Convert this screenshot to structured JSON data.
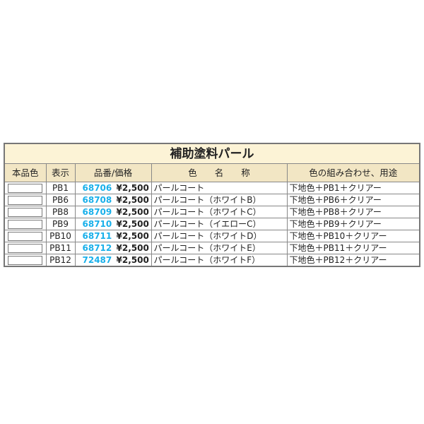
{
  "title": "補助塗料パール",
  "headers": [
    "本品色",
    "表示",
    "品番/価格",
    "色　　名　　称",
    "色の組み合わせ、用途"
  ],
  "accent": "#19b0ea",
  "rows": [
    {
      "code": "PB1",
      "num": "68706",
      "price": "¥2,500",
      "name": "パールコート",
      "use": "下地色＋PB1＋クリアー"
    },
    {
      "code": "PB6",
      "num": "68708",
      "price": "¥2,500",
      "name": "パールコート（ホワイトB）",
      "use": "下地色＋PB6＋クリアー"
    },
    {
      "code": "PB8",
      "num": "68709",
      "price": "¥2,500",
      "name": "パールコート（ホワイトC）",
      "use": "下地色＋PB8＋クリアー"
    },
    {
      "code": "PB9",
      "num": "68710",
      "price": "¥2,500",
      "name": "パールコート（イエローC）",
      "use": "下地色＋PB9＋クリアー"
    },
    {
      "code": "PB10",
      "num": "68711",
      "price": "¥2,500",
      "name": "パールコート（ホワイトD）",
      "use": "下地色＋PB10＋クリアー"
    },
    {
      "code": "PB11",
      "num": "68712",
      "price": "¥2,500",
      "name": "パールコート（ホワイトE）",
      "use": "下地色＋PB11＋クリアー"
    },
    {
      "code": "PB12",
      "num": "72487",
      "price": "¥2,500",
      "name": "パールコート（ホワイトF）",
      "use": "下地色＋PB12＋クリアー"
    }
  ]
}
